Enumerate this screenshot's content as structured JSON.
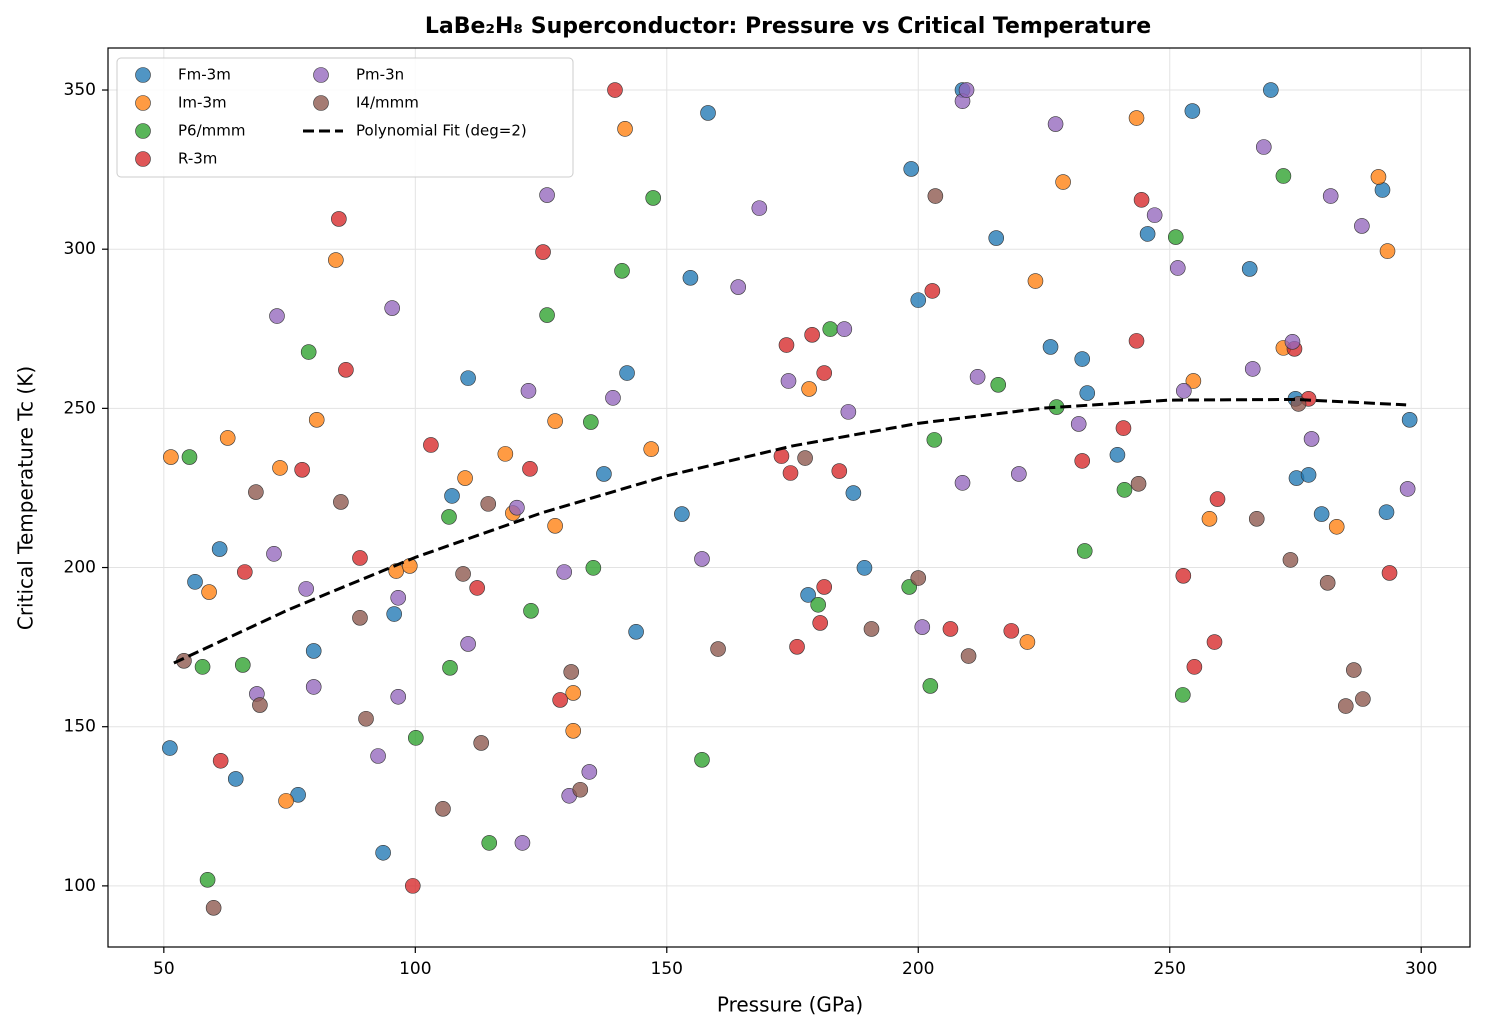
{
  "chart_data": {
    "type": "scatter",
    "title": "LaBe₂H₈ Superconductor: Pressure vs Critical Temperature",
    "x_label": "Pressure (GPa)",
    "y_label": "Critical Temperature Tc (K)",
    "xlim": [
      38.9,
      309.7
    ],
    "ylim": [
      80.8,
      363.2
    ],
    "xticks": [
      50,
      100,
      150,
      200,
      250,
      300
    ],
    "yticks": [
      100,
      150,
      200,
      250,
      300,
      350
    ],
    "grid": true,
    "legend": "upper left",
    "series": [
      {
        "name": "Fm-3m",
        "color": "#1f77b4",
        "x": [
          51.2,
          56.2,
          61.1,
          64.3,
          76.7,
          79.8,
          93.6,
          95.8,
          107.3,
          110.5,
          137.5,
          142.1,
          143.9,
          153.0,
          154.7,
          158.2,
          178.1,
          187.1,
          189.3,
          198.6,
          200.0,
          208.8,
          215.5,
          226.3,
          232.6,
          233.6,
          239.6,
          245.6,
          254.5,
          265.9,
          270.1,
          275.0,
          275.2,
          277.6,
          280.2,
          292.3,
          293.1,
          297.7
        ],
        "values": [
          143.3,
          195.5,
          205.8,
          133.6,
          128.6,
          173.8,
          110.4,
          185.4,
          222.5,
          259.5,
          229.4,
          261.1,
          179.8,
          216.8,
          291.0,
          342.8,
          191.4,
          223.4,
          199.9,
          325.2,
          284.0,
          350,
          303.5,
          269.3,
          265.5,
          254.8,
          235.4,
          304.8,
          343.4,
          293.8,
          350,
          253.0,
          228.1,
          229.1,
          216.8,
          318.6,
          217.4,
          246.4
        ]
      },
      {
        "name": "Im-3m",
        "color": "#ff7f0e",
        "x": [
          51.4,
          59.0,
          62.7,
          73.1,
          74.3,
          80.4,
          84.2,
          96.2,
          98.9,
          109.9,
          117.9,
          119.4,
          127.8,
          127.8,
          131.4,
          131.4,
          141.7,
          146.9,
          178.3,
          228.8,
          223.3,
          221.7,
          243.4,
          254.7,
          257.9,
          272.6,
          283.2,
          291.5,
          293.3
        ],
        "values": [
          234.7,
          192.3,
          240.7,
          231.3,
          126.7,
          246.4,
          296.6,
          198.9,
          200.5,
          228.1,
          235.7,
          217.1,
          246.0,
          213.1,
          160.6,
          148.7,
          337.8,
          237.2,
          256.1,
          321.1,
          290.0,
          176.6,
          341.2,
          258.6,
          215.3,
          269.0,
          212.8,
          322.7,
          299.4
        ]
      },
      {
        "name": "P6/mmm",
        "color": "#2ca02c",
        "x": [
          55.1,
          57.7,
          58.7,
          65.7,
          78.8,
          100.1,
          106.7,
          106.9,
          114.7,
          123.0,
          126.2,
          134.9,
          135.4,
          141.1,
          147.3,
          157.0,
          180.1,
          182.5,
          198.2,
          202.4,
          203.2,
          215.9,
          227.5,
          233.1,
          241.0,
          251.2,
          252.6,
          272.6
        ],
        "values": [
          234.7,
          168.8,
          101.9,
          169.4,
          267.7,
          146.5,
          215.9,
          168.5,
          113.5,
          186.4,
          279.3,
          245.7,
          199.9,
          293.2,
          316.1,
          139.6,
          188.3,
          274.9,
          193.9,
          162.8,
          240.1,
          257.4,
          250.4,
          205.2,
          224.4,
          303.8,
          160.0,
          323.0
        ]
      },
      {
        "name": "R-3m",
        "color": "#d62728",
        "x": [
          61.3,
          66.1,
          77.5,
          84.8,
          86.2,
          89.0,
          99.5,
          103.1,
          112.3,
          122.8,
          125.4,
          128.8,
          139.7,
          172.8,
          173.8,
          174.6,
          175.9,
          178.9,
          181.3,
          181.3,
          180.5,
          184.3,
          202.8,
          206.4,
          218.5,
          232.6,
          240.8,
          243.4,
          244.4,
          252.7,
          254.9,
          258.9,
          259.5,
          274.8,
          277.6,
          293.7
        ],
        "values": [
          139.3,
          198.6,
          230.7,
          309.5,
          262.1,
          203.0,
          100,
          238.5,
          193.6,
          231.0,
          299.1,
          158.4,
          350,
          235.0,
          269.9,
          229.7,
          175.1,
          273.1,
          261.1,
          193.9,
          182.6,
          230.3,
          286.9,
          180.7,
          180.1,
          233.5,
          243.8,
          271.2,
          315.5,
          197.4,
          168.8,
          176.6,
          221.5,
          268.7,
          253.0,
          198.3
        ]
      },
      {
        "name": "Pm-3n",
        "color": "#9467bd",
        "x": [
          68.5,
          71.9,
          72.5,
          78.3,
          79.8,
          92.6,
          95.4,
          96.6,
          96.6,
          110.5,
          120.2,
          121.3,
          122.5,
          126.2,
          129.6,
          130.6,
          134.6,
          139.3,
          157.0,
          164.2,
          168.4,
          174.2,
          185.3,
          186.1,
          200.8,
          208.8,
          209.6,
          208.8,
          211.8,
          220.0,
          227.3,
          231.9,
          247.0,
          251.6,
          252.8,
          266.5,
          268.7,
          274.4,
          278.2,
          282.0,
          288.2,
          297.3
        ],
        "values": [
          160.3,
          204.3,
          279.0,
          193.3,
          162.5,
          140.8,
          281.5,
          190.5,
          159.4,
          176.0,
          218.8,
          113.5,
          255.5,
          317.0,
          198.6,
          128.3,
          135.8,
          253.3,
          202.7,
          288.1,
          312.9,
          258.6,
          274.9,
          248.9,
          181.3,
          346.5,
          350,
          226.6,
          259.9,
          229.4,
          339.3,
          245.1,
          310.7,
          294.1,
          255.5,
          262.4,
          332.1,
          270.9,
          240.4,
          316.7,
          307.3,
          224.7
        ]
      },
      {
        "name": "I4/mmm",
        "color": "#8c564b",
        "x": [
          54.0,
          59.9,
          68.3,
          69.1,
          85.2,
          89.0,
          90.2,
          105.5,
          109.5,
          113.1,
          114.5,
          131.0,
          132.8,
          160.2,
          177.5,
          190.7,
          200.0,
          203.4,
          210.0,
          243.8,
          267.3,
          274.0,
          275.6,
          281.4,
          285.0,
          286.6,
          288.4
        ],
        "values": [
          170.7,
          93.1,
          223.7,
          156.8,
          220.6,
          184.2,
          152.5,
          124.2,
          198.0,
          144.9,
          220.0,
          167.2,
          130.2,
          174.4,
          234.4,
          180.7,
          196.7,
          316.7,
          172.2,
          226.3,
          215.3,
          202.4,
          251.4,
          195.2,
          156.5,
          167.8,
          158.7
        ]
      },
      {
        "name": "Polynomial Fit (deg=2)",
        "color": "#000000",
        "line_style": "dashed",
        "x": [
          52,
          75,
          100,
          125,
          150,
          175,
          200,
          225,
          250,
          275,
          297
        ],
        "values": [
          170.0,
          186.9,
          203.2,
          217.1,
          228.8,
          238.2,
          245.3,
          250.1,
          252.6,
          252.8,
          251.1
        ]
      }
    ]
  }
}
